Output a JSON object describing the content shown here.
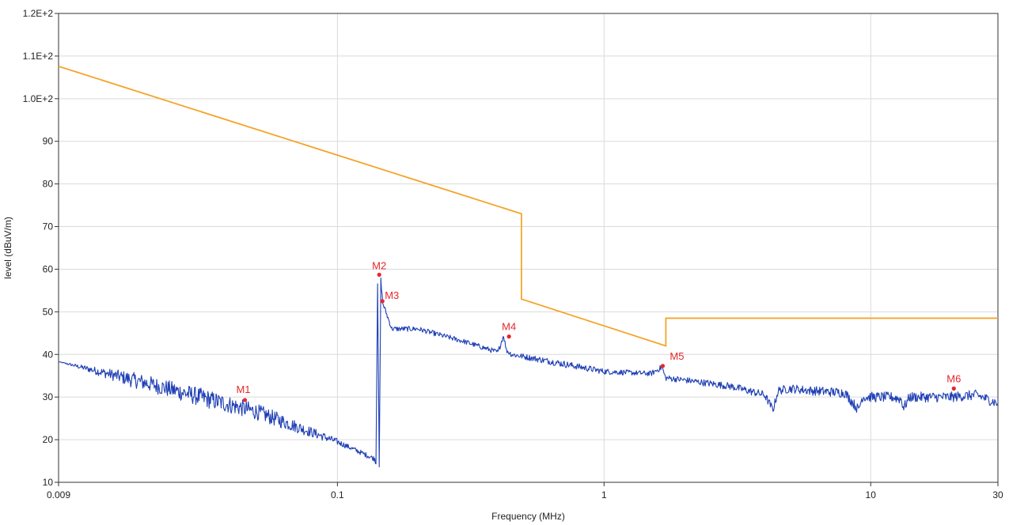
{
  "chart_data": {
    "type": "line",
    "title": "",
    "xlabel": "Frequency (MHz)",
    "ylabel": "level (dBuV/m)",
    "x_scale": "log",
    "xlim": [
      0.009,
      30
    ],
    "ylim": [
      10,
      120
    ],
    "x_ticks": [
      {
        "value": 0.009,
        "label": "0.009"
      },
      {
        "value": 0.1,
        "label": "0.1"
      },
      {
        "value": 1,
        "label": "1"
      },
      {
        "value": 10,
        "label": "10"
      },
      {
        "value": 30,
        "label": "30"
      }
    ],
    "y_ticks": [
      {
        "value": 10,
        "label": "10"
      },
      {
        "value": 20,
        "label": "20"
      },
      {
        "value": 30,
        "label": "30"
      },
      {
        "value": 40,
        "label": "40"
      },
      {
        "value": 50,
        "label": "50"
      },
      {
        "value": 60,
        "label": "60"
      },
      {
        "value": 70,
        "label": "70"
      },
      {
        "value": 80,
        "label": "80"
      },
      {
        "value": 90,
        "label": "90"
      },
      {
        "value": 100,
        "label": "1.0E+2"
      },
      {
        "value": 110,
        "label": "1.1E+2"
      },
      {
        "value": 120,
        "label": "1.2E+2"
      }
    ],
    "grid": true,
    "series": [
      {
        "color": "#f4a52c",
        "x": [
          0.009,
          0.49,
          0.49,
          1.705,
          1.705,
          30
        ],
        "values": [
          107.6,
          73.0,
          53.0,
          42.0,
          48.5,
          48.5
        ]
      },
      {
        "color": "#1f3fb4",
        "noise": [
          0,
          1.8,
          2.2,
          1.8,
          0.6,
          0.6,
          0.6,
          0.8,
          0.6,
          0.8,
          1.0,
          1.2,
          1.2,
          1.2
        ],
        "x": [
          0.009,
          0.02,
          0.05,
          0.1,
          0.138,
          0.1395,
          0.1415,
          0.1435,
          0.1455,
          0.148,
          0.16,
          0.2,
          0.3,
          0.4,
          0.42,
          0.43,
          0.45,
          0.5,
          1,
          1.5,
          1.65,
          1.7,
          2,
          3,
          4,
          4.3,
          4.5,
          5,
          6,
          8,
          9,
          9.3,
          10,
          12,
          13,
          13.3,
          14,
          20,
          25,
          30
        ],
        "values": [
          38.3,
          33.0,
          26.5,
          19.5,
          15.5,
          14.5,
          57.0,
          13.5,
          57.5,
          52.0,
          46.0,
          46.0,
          43.0,
          40.5,
          44.5,
          41.0,
          40.0,
          39.5,
          36.0,
          35.5,
          37.0,
          34.5,
          34.0,
          32.5,
          30.5,
          27.0,
          31.5,
          32.0,
          31.5,
          31.0,
          27.0,
          30.0,
          30.0,
          30.0,
          29.5,
          27.5,
          30.0,
          30.0,
          30.5,
          28.5
        ]
      }
    ],
    "markers": [
      {
        "label": "M1",
        "x": 0.045,
        "y": 29.3
      },
      {
        "label": "M2",
        "x": 0.1435,
        "y": 58.7
      },
      {
        "label": "M3",
        "x": 0.1475,
        "y": 52.5
      },
      {
        "label": "M4",
        "x": 0.44,
        "y": 44.2
      },
      {
        "label": "M5",
        "x": 1.66,
        "y": 37.3
      },
      {
        "label": "M6",
        "x": 20.5,
        "y": 32.0
      }
    ]
  }
}
